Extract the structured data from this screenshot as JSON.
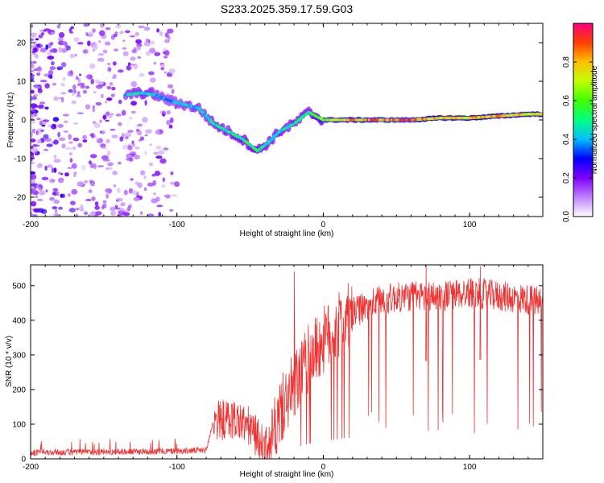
{
  "title": "S233.2025.359.17.59.G03",
  "chart_data": [
    {
      "type": "heatmap",
      "title": "S233.2025.359.17.59.G03",
      "xlabel": "Height of straight line (km)",
      "ylabel": "Frequency (Hz)",
      "xlim": [
        -200,
        150
      ],
      "ylim": [
        -25,
        25
      ],
      "xticks": [
        -200,
        -100,
        0,
        100
      ],
      "yticks": [
        -20,
        -10,
        0,
        10,
        20
      ],
      "colorbar": {
        "label": "Normalized spectral amplitude",
        "range": [
          0.0,
          1.0
        ],
        "ticks": [
          "0.0",
          "0.2",
          "0.4",
          "0.6",
          "0.8"
        ],
        "tick_values": [
          0.0,
          0.2,
          0.4,
          0.6,
          0.8
        ],
        "colors": [
          "#ffffff",
          "#c080ff",
          "#8000ff",
          "#0000ff",
          "#00c0ff",
          "#00ff80",
          "#40ff00",
          "#c0ff00",
          "#ffc000",
          "#ff4000",
          "#ff0080"
        ]
      },
      "ridge": [
        {
          "x": -135,
          "y": 6.5,
          "amp": 0.45
        },
        {
          "x": -125,
          "y": 7.0,
          "amp": 0.5
        },
        {
          "x": -115,
          "y": 6.5,
          "amp": 0.45
        },
        {
          "x": -105,
          "y": 5.0,
          "amp": 0.4
        },
        {
          "x": -95,
          "y": 4.0,
          "amp": 0.45
        },
        {
          "x": -85,
          "y": 3.0,
          "amp": 0.45
        },
        {
          "x": -75,
          "y": -1.0,
          "amp": 0.5
        },
        {
          "x": -65,
          "y": -3.0,
          "amp": 0.5
        },
        {
          "x": -55,
          "y": -5.0,
          "amp": 0.55
        },
        {
          "x": -45,
          "y": -8.0,
          "amp": 0.55
        },
        {
          "x": -38,
          "y": -6.0,
          "amp": 0.5
        },
        {
          "x": -30,
          "y": -3.0,
          "amp": 0.5
        },
        {
          "x": -20,
          "y": -1.0,
          "amp": 0.5
        },
        {
          "x": -10,
          "y": 2.0,
          "amp": 0.5
        },
        {
          "x": 0,
          "y": 0.0,
          "amp": 0.7
        },
        {
          "x": 20,
          "y": 0.0,
          "amp": 0.85
        },
        {
          "x": 40,
          "y": 0.0,
          "amp": 0.95
        },
        {
          "x": 60,
          "y": 0.0,
          "amp": 0.95
        },
        {
          "x": 80,
          "y": 0.5,
          "amp": 0.8
        },
        {
          "x": 100,
          "y": 0.5,
          "amp": 0.85
        },
        {
          "x": 120,
          "y": 1.0,
          "amp": 0.85
        },
        {
          "x": 140,
          "y": 1.5,
          "amp": 0.8
        },
        {
          "x": 150,
          "y": 1.5,
          "amp": 0.75
        }
      ]
    },
    {
      "type": "line",
      "xlabel": "Height of straight line (km)",
      "ylabel": "SNR (10 * v/v)",
      "xlim": [
        -200,
        150
      ],
      "ylim": [
        0,
        560
      ],
      "xticks": [
        -200,
        -100,
        0,
        100
      ],
      "yticks": [
        0,
        100,
        200,
        300,
        400,
        500
      ],
      "color": "#ee3333",
      "envelope": {
        "x": [
          -200,
          -150,
          -100,
          -80,
          -75,
          -60,
          -50,
          -40,
          -35,
          -30,
          -20,
          -10,
          0,
          10,
          20,
          30,
          40,
          60,
          80,
          100,
          120,
          140,
          150
        ],
        "y": [
          18,
          20,
          22,
          25,
          110,
          115,
          90,
          30,
          50,
          130,
          210,
          290,
          340,
          380,
          420,
          440,
          460,
          470,
          470,
          480,
          470,
          460,
          450
        ]
      },
      "peaks": [
        {
          "x": -20,
          "y": 540
        },
        {
          "x": 70,
          "y": 560
        },
        {
          "x": 107,
          "y": 555
        }
      ]
    }
  ]
}
